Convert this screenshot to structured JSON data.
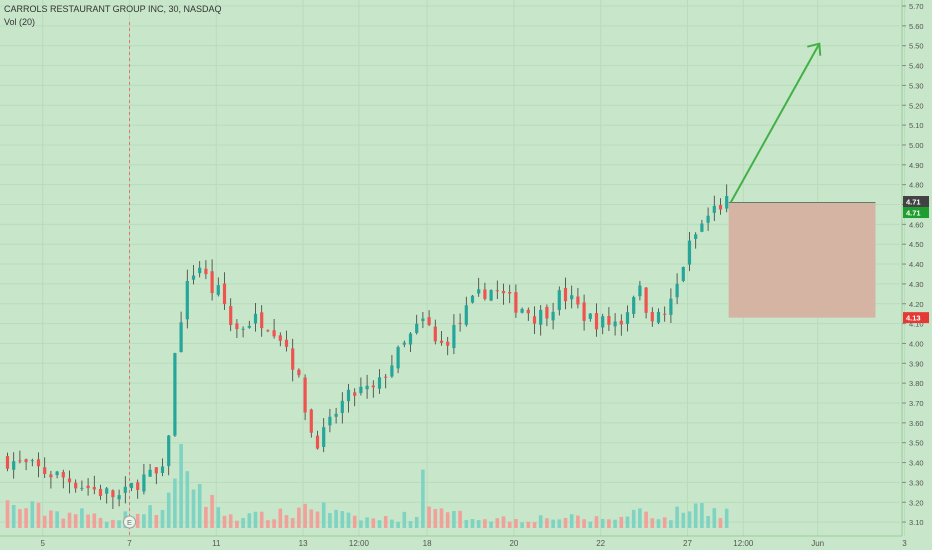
{
  "header": {
    "title": "CARROLS RESTAURANT GROUP INC, 30, NASDAQ",
    "volume_label": "Vol (20)"
  },
  "colors": {
    "background": "#c8e6c9",
    "up": "#26a69a",
    "down": "#ef5350",
    "volume_up": "#7fd3c2",
    "volume_down": "#f2a09a",
    "arrow": "#43b047",
    "target_box": "#d5b4a4",
    "price_tag_top": "#424242",
    "price_tag_green": "#1e9e2e",
    "price_tag_red": "#e53935",
    "axis_text": "#555555"
  },
  "markers": {
    "earnings_label": "E",
    "price_tag_last": "4.71",
    "price_tag_current": "4.71",
    "price_tag_stop": "4.13"
  },
  "chart_data": {
    "type": "candlestick",
    "title": "CARROLS RESTAURANT GROUP INC, 30, NASDAQ",
    "y_ticks": [
      "5.70",
      "5.60",
      "5.50",
      "5.40",
      "5.30",
      "5.20",
      "5.10",
      "5.00",
      "4.90",
      "4.80",
      "4.70",
      "4.60",
      "4.50",
      "4.40",
      "4.30",
      "4.20",
      "4.10",
      "4.00",
      "3.90",
      "3.80",
      "3.70",
      "3.60",
      "3.50",
      "3.40",
      "3.30",
      "3.20",
      "3.10"
    ],
    "ylim": [
      3.06,
      5.74
    ],
    "x_ticks": [
      {
        "label": "5",
        "index": 6
      },
      {
        "label": "7",
        "index": 20
      },
      {
        "label": "11",
        "index": 34
      },
      {
        "label": "13",
        "index": 48
      },
      {
        "label": "12:00",
        "index": 57
      },
      {
        "label": "18",
        "index": 68
      },
      {
        "label": "20",
        "index": 82
      },
      {
        "label": "22",
        "index": 96
      },
      {
        "label": "27",
        "index": 110
      },
      {
        "label": "12:00",
        "index": 119
      },
      {
        "label": "Jun",
        "index": 131
      },
      {
        "label": "3",
        "index": 145
      }
    ],
    "price_path": [
      [
        0,
        3.42
      ],
      [
        6,
        3.36
      ],
      [
        10,
        3.32
      ],
      [
        14,
        3.27
      ],
      [
        19,
        3.22
      ],
      [
        22,
        3.32
      ],
      [
        26,
        3.34
      ],
      [
        28,
        4.08
      ],
      [
        29,
        4.18
      ],
      [
        30,
        4.35
      ],
      [
        32,
        4.4
      ],
      [
        33,
        4.28
      ],
      [
        35,
        4.25
      ],
      [
        37,
        4.06
      ],
      [
        40,
        4.12
      ],
      [
        42,
        4.12
      ],
      [
        44,
        4.07
      ],
      [
        46,
        3.97
      ],
      [
        48,
        3.76
      ],
      [
        50,
        3.5
      ],
      [
        52,
        3.55
      ],
      [
        54,
        3.68
      ],
      [
        57,
        3.76
      ],
      [
        60,
        3.76
      ],
      [
        62,
        3.88
      ],
      [
        64,
        3.96
      ],
      [
        66,
        4.05
      ],
      [
        68,
        4.12
      ],
      [
        70,
        3.97
      ],
      [
        73,
        4.08
      ],
      [
        75,
        4.18
      ],
      [
        78,
        4.28
      ],
      [
        80,
        4.25
      ],
      [
        82,
        4.2
      ],
      [
        84,
        4.18
      ],
      [
        86,
        4.13
      ],
      [
        88,
        4.18
      ],
      [
        90,
        4.25
      ],
      [
        92,
        4.2
      ],
      [
        94,
        4.13
      ],
      [
        97,
        4.1
      ],
      [
        100,
        4.12
      ],
      [
        102,
        4.3
      ],
      [
        104,
        4.16
      ],
      [
        106,
        4.12
      ],
      [
        108,
        4.22
      ],
      [
        110,
        4.45
      ],
      [
        112,
        4.57
      ],
      [
        114,
        4.66
      ],
      [
        116,
        4.71
      ]
    ],
    "volume_path": [
      [
        0,
        0.32
      ],
      [
        4,
        0.27
      ],
      [
        8,
        0.22
      ],
      [
        12,
        0.2
      ],
      [
        16,
        0.14
      ],
      [
        20,
        0.18
      ],
      [
        24,
        0.25
      ],
      [
        27,
        0.5
      ],
      [
        28,
        1.0
      ],
      [
        30,
        0.7
      ],
      [
        32,
        0.4
      ],
      [
        36,
        0.18
      ],
      [
        40,
        0.16
      ],
      [
        46,
        0.2
      ],
      [
        48,
        0.32
      ],
      [
        50,
        0.3
      ],
      [
        55,
        0.15
      ],
      [
        60,
        0.12
      ],
      [
        66,
        0.18
      ],
      [
        67,
        0.65
      ],
      [
        70,
        0.2
      ],
      [
        76,
        0.15
      ],
      [
        82,
        0.12
      ],
      [
        88,
        0.15
      ],
      [
        94,
        0.12
      ],
      [
        100,
        0.15
      ],
      [
        102,
        0.3
      ],
      [
        106,
        0.12
      ],
      [
        110,
        0.3
      ],
      [
        113,
        0.28
      ],
      [
        116,
        0.22
      ]
    ],
    "last_index": 116,
    "earnings_index": 20,
    "earnings_marker": "E",
    "position": {
      "entry": 4.71,
      "stop": 4.13,
      "target": 5.51,
      "start_index": 116,
      "end_index": 140,
      "target_index": 129
    }
  }
}
